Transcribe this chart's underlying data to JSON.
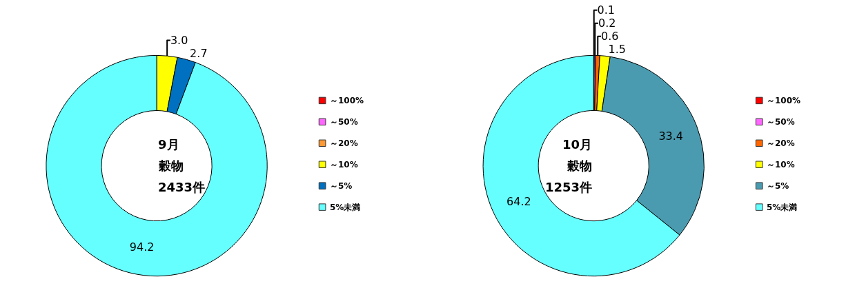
{
  "chart_data": [
    {
      "type": "donut",
      "title": "9月",
      "annotations": [
        "穀物",
        "2433件"
      ],
      "categories": [
        "～100%",
        "～50%",
        "～20%",
        "～10%",
        "～5%",
        "5%未満"
      ],
      "values": [
        0,
        0,
        0,
        3.0,
        2.7,
        94.2
      ],
      "value_labels": [
        null,
        null,
        null,
        "3.0",
        "2.7",
        "94.2"
      ],
      "colors": [
        "#ff0000",
        "#ff66ff",
        "#ff9933",
        "#ffff00",
        "#0070c0",
        "#66ffff"
      ],
      "legend": "right"
    },
    {
      "type": "donut",
      "title": "10月",
      "annotations": [
        "穀物",
        "1253件"
      ],
      "categories": [
        "～100%",
        "～50%",
        "～20%",
        "～10%",
        "～5%",
        "5%未満"
      ],
      "values": [
        0.1,
        0.2,
        0.6,
        1.5,
        33.4,
        64.2
      ],
      "value_labels": [
        "0.1",
        "0.2",
        "0.6",
        "1.5",
        "33.4",
        "64.2"
      ],
      "colors": [
        "#ff0000",
        "#ff66ff",
        "#ff6600",
        "#ffff00",
        "#4a9bb0",
        "#66ffff"
      ],
      "legend": "right"
    }
  ]
}
